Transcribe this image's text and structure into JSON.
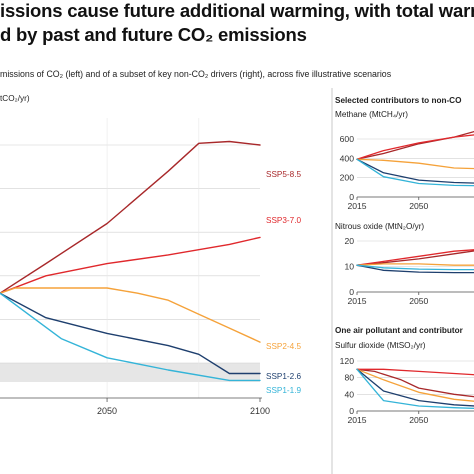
{
  "title": {
    "line1": "issions cause future additional warming, with total warr",
    "line2": "d by past and future CO₂ emissions"
  },
  "subtitle": "missions of CO₂ (left) and of a subset of key non-CO₂ drivers (right), across five illustrative scenarios",
  "colors": {
    "SSP5-8.5": "#a8282a",
    "SSP3-7.0": "#e0282c",
    "SSP2-4.5": "#f5a23a",
    "SSP1-2.6": "#1e3f6e",
    "SSP1-1.9": "#34b4d8",
    "band": "#e6e6e6",
    "grid": "#d0d0d0"
  },
  "chart_data": [
    {
      "type": "line",
      "panel": "co2",
      "ylabel": "tCO₂/yr)",
      "x_ticks": [
        "2050",
        "2100"
      ],
      "series": [
        {
          "name": "SSP5-8.5",
          "x": [
            2015,
            2030,
            2050,
            2070,
            2080,
            2090,
            2100
          ],
          "y": [
            40,
            57,
            80,
            110,
            126,
            127,
            125
          ]
        },
        {
          "name": "SSP3-7.0",
          "x": [
            2015,
            2030,
            2050,
            2070,
            2090,
            2100
          ],
          "y": [
            40,
            50,
            57,
            62,
            68,
            72
          ]
        },
        {
          "name": "SSP2-4.5",
          "x": [
            2015,
            2020,
            2030,
            2050,
            2060,
            2070,
            2080,
            2090,
            2100
          ],
          "y": [
            40,
            43,
            43,
            43,
            40,
            36,
            28,
            20,
            12
          ]
        },
        {
          "name": "SSP1-2.6",
          "x": [
            2015,
            2030,
            2050,
            2070,
            2080,
            2090,
            2100
          ],
          "y": [
            40,
            26,
            17,
            10,
            5,
            -6,
            -6
          ]
        },
        {
          "name": "SSP1-1.9",
          "x": [
            2015,
            2025,
            2035,
            2050,
            2070,
            2090,
            2100
          ],
          "y": [
            40,
            27,
            14,
            3,
            -4,
            -10,
            -10
          ]
        }
      ],
      "labels": [
        "SSP5-8.5",
        "SSP3-7.0",
        "SSP2-4.5",
        "SSP1-2.6",
        "SSP1-1.9"
      ]
    },
    {
      "type": "line",
      "panel": "methane",
      "ylabel": "Methane (MtCH₄/yr)",
      "y_ticks": [
        "0",
        "200",
        "400",
        "600"
      ],
      "x_ticks": [
        "2015",
        "2050"
      ],
      "series": [
        {
          "name": "SSP5-8.5",
          "x": [
            2015,
            2030,
            2050,
            2070,
            2090
          ],
          "y": [
            390,
            450,
            550,
            620,
            720
          ]
        },
        {
          "name": "SSP3-7.0",
          "x": [
            2015,
            2030,
            2050,
            2070,
            2090
          ],
          "y": [
            390,
            480,
            560,
            620,
            660
          ]
        },
        {
          "name": "SSP2-4.5",
          "x": [
            2015,
            2030,
            2050,
            2070,
            2090
          ],
          "y": [
            390,
            380,
            350,
            300,
            290
          ]
        },
        {
          "name": "SSP1-2.6",
          "x": [
            2015,
            2030,
            2050,
            2070,
            2090
          ],
          "y": [
            390,
            250,
            175,
            150,
            140
          ]
        },
        {
          "name": "SSP1-1.9",
          "x": [
            2015,
            2030,
            2050,
            2070,
            2090
          ],
          "y": [
            390,
            210,
            140,
            120,
            115
          ]
        }
      ]
    },
    {
      "type": "line",
      "panel": "nitrous",
      "ylabel": "Nitrous oxide (MtN₂O/yr)",
      "y_ticks": [
        "0",
        "10",
        "20"
      ],
      "x_ticks": [
        "2015",
        "2050"
      ],
      "series": [
        {
          "name": "SSP5-8.5",
          "x": [
            2015,
            2030,
            2050,
            2070,
            2090
          ],
          "y": [
            10.5,
            11.5,
            13,
            15,
            17
          ]
        },
        {
          "name": "SSP3-7.0",
          "x": [
            2015,
            2030,
            2050,
            2070,
            2090
          ],
          "y": [
            10.5,
            12,
            14,
            16,
            17
          ]
        },
        {
          "name": "SSP2-4.5",
          "x": [
            2015,
            2030,
            2050,
            2070,
            2090
          ],
          "y": [
            10.5,
            11,
            11,
            10.5,
            10.5
          ]
        },
        {
          "name": "SSP1-2.6",
          "x": [
            2015,
            2030,
            2050,
            2070,
            2090
          ],
          "y": [
            10.5,
            8.5,
            7.8,
            7.6,
            7.6
          ]
        },
        {
          "name": "SSP1-1.9",
          "x": [
            2015,
            2030,
            2050,
            2070,
            2090
          ],
          "y": [
            10.5,
            9.5,
            9,
            8.8,
            8.8
          ]
        }
      ]
    },
    {
      "type": "line",
      "panel": "sulfur",
      "ylabel": "Sulfur dioxide (MtSO₂/yr)",
      "y_ticks": [
        "0",
        "40",
        "80",
        "120"
      ],
      "x_ticks": [
        "2015",
        "2050"
      ],
      "series": [
        {
          "name": "SSP5-8.5",
          "x": [
            2015,
            2025,
            2040,
            2050,
            2070,
            2090
          ],
          "y": [
            100,
            95,
            75,
            55,
            40,
            30
          ]
        },
        {
          "name": "SSP3-7.0",
          "x": [
            2015,
            2030,
            2050,
            2070,
            2090
          ],
          "y": [
            100,
            100,
            95,
            90,
            85
          ]
        },
        {
          "name": "SSP2-4.5",
          "x": [
            2015,
            2030,
            2050,
            2070,
            2090
          ],
          "y": [
            100,
            75,
            45,
            28,
            20
          ]
        },
        {
          "name": "SSP1-2.6",
          "x": [
            2015,
            2030,
            2050,
            2070,
            2090
          ],
          "y": [
            100,
            48,
            25,
            15,
            10
          ]
        },
        {
          "name": "SSP1-1.9",
          "x": [
            2015,
            2025,
            2030,
            2050,
            2070,
            2090
          ],
          "y": [
            100,
            50,
            25,
            12,
            8,
            5
          ]
        }
      ]
    }
  ],
  "captions": {
    "co2_unit": "tCO₂/yr)",
    "selected": "Selected contributors to non-CO",
    "methane": "Methane (MtCH₄/yr)",
    "nitrous": "Nitrous oxide (MtN₂O/yr)",
    "pollutant": "One air pollutant and contributor",
    "sulfur": "Sulfur dioxide (MtSO₂/yr)"
  }
}
